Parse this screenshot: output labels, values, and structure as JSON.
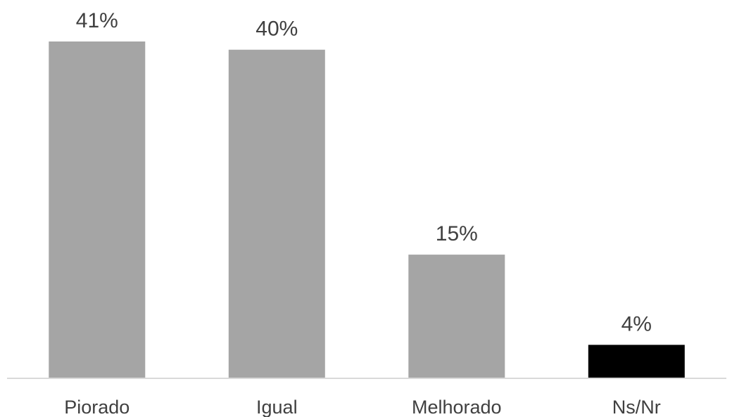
{
  "chart_data": {
    "type": "bar",
    "categories": [
      "Piorado",
      "Igual",
      "Melhorado",
      "Ns/Nr"
    ],
    "values": [
      41,
      40,
      15,
      4
    ],
    "data_labels": [
      "41%",
      "40%",
      "15%",
      "4%"
    ],
    "unit": "%",
    "title": "",
    "xlabel": "",
    "ylabel": "",
    "ylim": [
      0,
      41
    ],
    "grid": false,
    "legend": "none",
    "bar_colors": [
      "#a5a5a5",
      "#a5a5a5",
      "#a5a5a5",
      "#000000"
    ],
    "axis_color": "#d9d9d9",
    "text_color": "#404040"
  }
}
